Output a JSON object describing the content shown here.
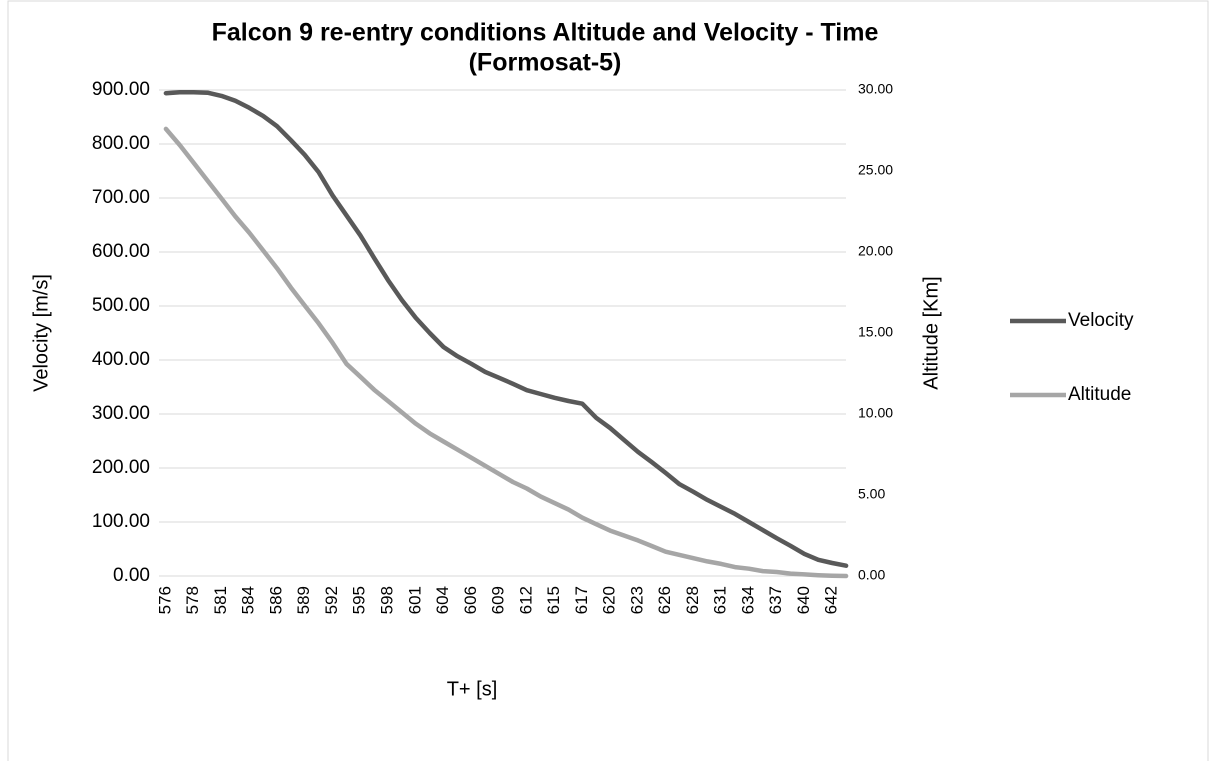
{
  "chart_data": {
    "type": "line",
    "title": [
      "Falcon 9 re-entry conditions Altitude and Velocity - Time",
      "(Formosat-5)"
    ],
    "x_label": "T+ [s]",
    "y_label": "Velocity [m/s]",
    "y2_label": "Altitude [Km]",
    "categories": [
      "576",
      null,
      "578",
      null,
      "581",
      null,
      "584",
      null,
      "586",
      null,
      "589",
      null,
      "592",
      null,
      "595",
      null,
      "598",
      null,
      "601",
      null,
      "604",
      null,
      "606",
      null,
      "609",
      null,
      "612",
      null,
      "615",
      null,
      "617",
      null,
      "620",
      null,
      "623",
      null,
      "626",
      null,
      "628",
      null,
      "631",
      null,
      "634",
      null,
      "637",
      null,
      "640",
      null,
      "642",
      null
    ],
    "series": [
      {
        "name": "Velocity",
        "color": "#595959",
        "axis": "y",
        "values": [
          894,
          896,
          896,
          895,
          889,
          880,
          867,
          852,
          833,
          807,
          780,
          748,
          705,
          668,
          631,
          589,
          548,
          511,
          478,
          450,
          424,
          407,
          393,
          378,
          367,
          356,
          344,
          337,
          330,
          324,
          319,
          293,
          274,
          252,
          230,
          211,
          191,
          170,
          156,
          141,
          128,
          115,
          100,
          85,
          70,
          56,
          41,
          30,
          24,
          19
        ]
      },
      {
        "name": "Altitude",
        "color": "#a6a6a6",
        "axis": "y2",
        "values": [
          27.6,
          26.6,
          25.5,
          24.4,
          23.3,
          22.2,
          21.2,
          20.1,
          19.0,
          17.8,
          16.7,
          15.6,
          14.4,
          13.1,
          12.3,
          11.5,
          10.8,
          10.1,
          9.4,
          8.8,
          8.3,
          7.8,
          7.3,
          6.8,
          6.3,
          5.8,
          5.4,
          4.9,
          4.5,
          4.1,
          3.6,
          3.2,
          2.8,
          2.5,
          2.2,
          1.85,
          1.5,
          1.3,
          1.1,
          0.9,
          0.75,
          0.55,
          0.45,
          0.3,
          0.25,
          0.15,
          0.1,
          0.05,
          0.02,
          0
        ]
      }
    ],
    "ylim": [
      0,
      900
    ],
    "yticks": [
      {
        "value": 0,
        "label": "0.00"
      },
      {
        "value": 100,
        "label": "100.00"
      },
      {
        "value": 200,
        "label": "200.00"
      },
      {
        "value": 300,
        "label": "300.00"
      },
      {
        "value": 400,
        "label": "400.00"
      },
      {
        "value": 500,
        "label": "500.00"
      },
      {
        "value": 600,
        "label": "600.00"
      },
      {
        "value": 700,
        "label": "700.00"
      },
      {
        "value": 800,
        "label": "800.00"
      },
      {
        "value": 900,
        "label": "900.00"
      }
    ],
    "y2lim": [
      0,
      30
    ],
    "y2ticks": [
      {
        "value": 0,
        "label": "0.00"
      },
      {
        "value": 5,
        "label": "5.00"
      },
      {
        "value": 10,
        "label": "10.00"
      },
      {
        "value": 15,
        "label": "15.00"
      },
      {
        "value": 20,
        "label": "20.00"
      },
      {
        "value": 25,
        "label": "25.00"
      },
      {
        "value": 30,
        "label": "30.00"
      }
    ],
    "grid": true,
    "legend": "right"
  }
}
